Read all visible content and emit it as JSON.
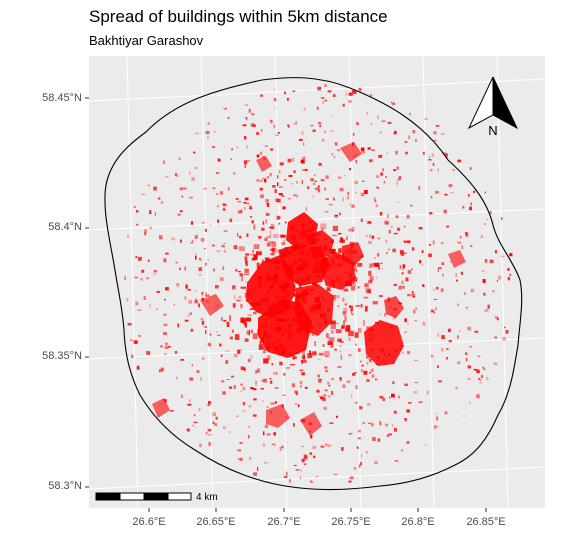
{
  "map": {
    "title": "Spread of buildings within 5km distance",
    "subtitle": "Bakhtiyar Garashov",
    "lat_labels": [
      "58.45°N",
      "58.4°N",
      "58.35°N",
      "58.3°N"
    ],
    "lon_labels": [
      "26.6°E",
      "26.65°E",
      "26.7°E",
      "26.75°E",
      "26.8°E",
      "26.85°E"
    ],
    "north_label": "N",
    "scale_label": "4 km",
    "panel_color": "#ebebeb",
    "building_color": "#ff0000",
    "buffer_outline_color": "#000000"
  }
}
